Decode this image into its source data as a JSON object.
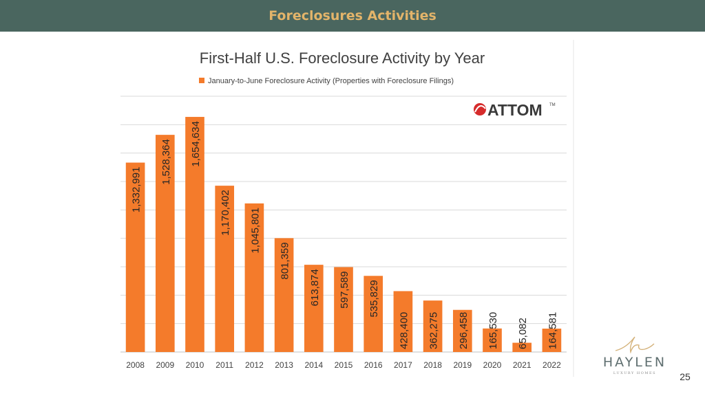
{
  "header": {
    "title": "Foreclosures Activities"
  },
  "chart_data": {
    "type": "bar",
    "title": "First-Half U.S. Foreclosure Activity by Year",
    "legend": [
      "January-to-June Foreclosure Activity (Properties with Foreclosure Filings)"
    ],
    "legend_position": "top",
    "categories": [
      "2008",
      "2009",
      "2010",
      "2011",
      "2012",
      "2013",
      "2014",
      "2015",
      "2016",
      "2017",
      "2018",
      "2019",
      "2020",
      "2021",
      "2022"
    ],
    "series": [
      {
        "name": "January-to-June Foreclosure Activity (Properties with Foreclosure Filings)",
        "values": [
          1332991,
          1528364,
          1654634,
          1170402,
          1045801,
          801359,
          613874,
          597589,
          535829,
          428400,
          362275,
          296458,
          165530,
          65082,
          164581
        ],
        "labels": [
          "1,332,991",
          "1,528,364",
          "1,654,634",
          "1,170,402",
          "1,045,801",
          "801,359",
          "613,874",
          "597,589",
          "535,829",
          "428,400",
          "362,275",
          "296,458",
          "165,530",
          "65,082",
          "164,581"
        ]
      }
    ],
    "ylim": [
      0,
      1800000
    ],
    "grid": true,
    "xlabel": "",
    "ylabel": "",
    "bar_color": "#f47b2b",
    "grid_color": "#d9d9d9",
    "source_logo": "ATTOM",
    "source_logo_mark": "TM"
  },
  "brand": {
    "name": "HAYLEN",
    "tagline": "LUXURY HOMES",
    "accent": "#d4b27a"
  },
  "page_number": "25",
  "colors": {
    "header_bg": "#4a665f",
    "header_text": "#e3b46a"
  }
}
